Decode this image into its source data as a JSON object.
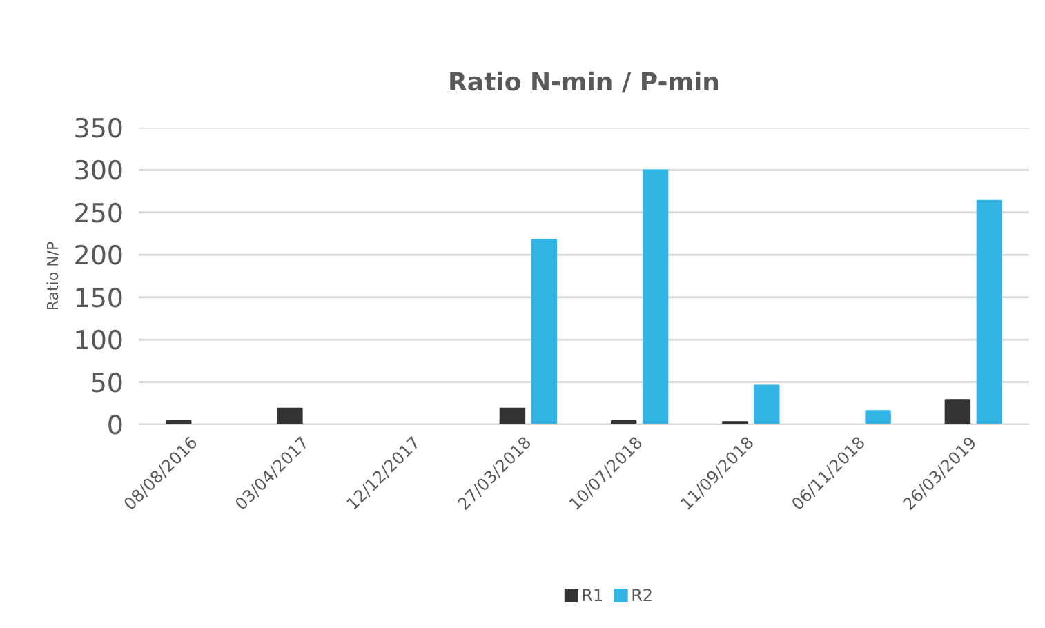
{
  "chart_data": {
    "type": "bar",
    "title": "Ratio N-min / P-min",
    "ylabel": "Ratio N/P",
    "categories": [
      "08/08/2016",
      "03/04/2017",
      "12/12/2017",
      "27/03/2018",
      "10/07/2018",
      "11/09/2018",
      "06/11/2018",
      "26/03/2019"
    ],
    "series": [
      {
        "name": "R1",
        "color": "#333333",
        "values": [
          4,
          19,
          null,
          19,
          4,
          3,
          null,
          29
        ]
      },
      {
        "name": "R2",
        "color": "#32b4e5",
        "values": [
          null,
          null,
          null,
          218,
          300,
          46,
          16,
          264
        ]
      }
    ],
    "ylim": [
      0,
      350
    ],
    "yticks": [
      0,
      50,
      100,
      150,
      200,
      250,
      300,
      350
    ],
    "grid": "y",
    "legend": "bottom"
  }
}
